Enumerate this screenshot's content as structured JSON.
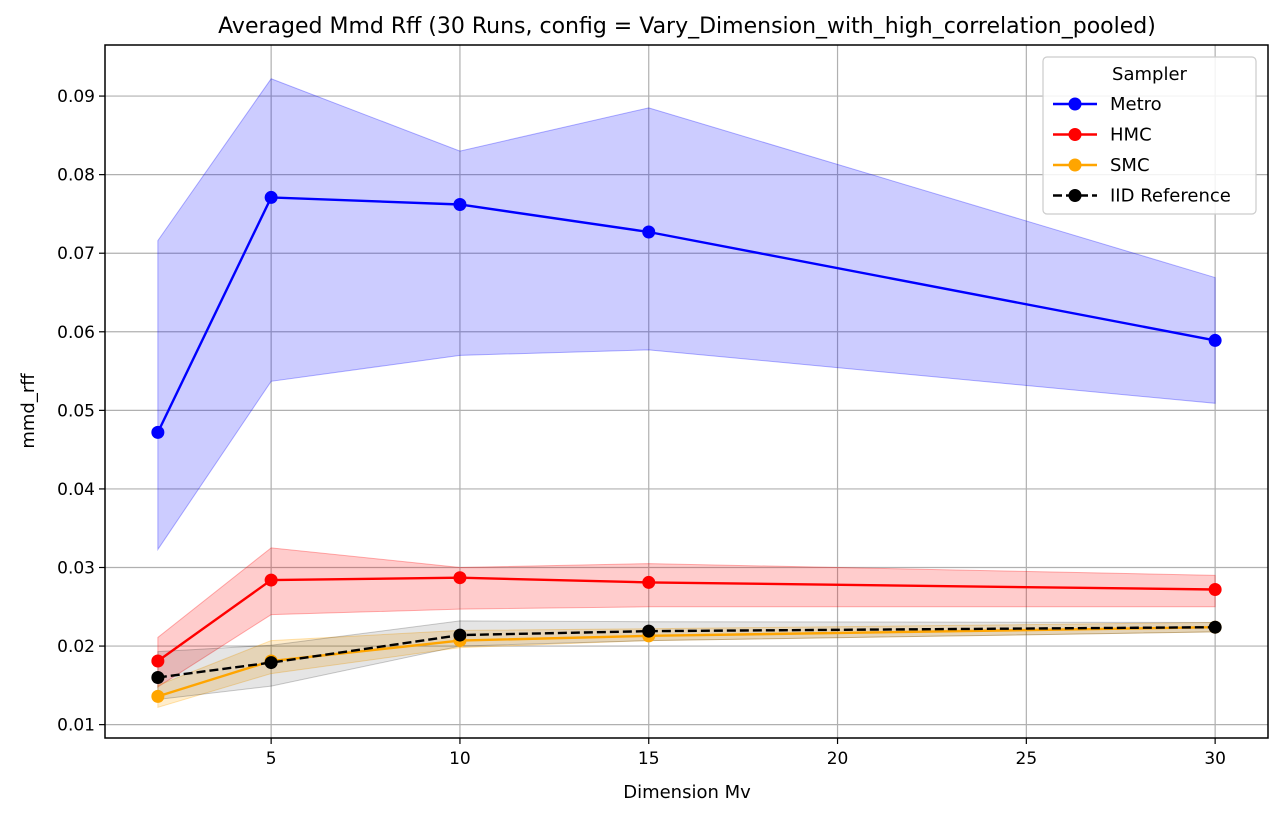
{
  "chart_data": {
    "type": "line",
    "title": "Averaged Mmd Rff (30 Runs, config = Vary_Dimension_with_high_correlation_pooled)",
    "xlabel": "Dimension Mv",
    "ylabel": "mmd_rff",
    "x": [
      2,
      5,
      10,
      15,
      30
    ],
    "xlim": [
      0.6,
      31.4
    ],
    "ylim": [
      0.0083,
      0.0965
    ],
    "xticks": [
      5,
      10,
      15,
      20,
      25,
      30
    ],
    "yticks": [
      0.01,
      0.02,
      0.03,
      0.04,
      0.05,
      0.06,
      0.07,
      0.08,
      0.09
    ],
    "ytick_labels": [
      "0.01",
      "0.02",
      "0.03",
      "0.04",
      "0.05",
      "0.06",
      "0.07",
      "0.08",
      "0.09"
    ],
    "grid": true,
    "legend": {
      "title": "Sampler",
      "placement": "top-right"
    },
    "series": [
      {
        "name": "Metro",
        "color": "#0000ff",
        "linestyle": "solid",
        "values": [
          0.0472,
          0.0771,
          0.0762,
          0.0727,
          0.0589
        ],
        "band_lower": [
          0.0323,
          0.0537,
          0.057,
          0.0577,
          0.0509
        ],
        "band_upper": [
          0.0716,
          0.0922,
          0.083,
          0.0885,
          0.0669
        ]
      },
      {
        "name": "HMC",
        "color": "#ff0000",
        "linestyle": "solid",
        "values": [
          0.0181,
          0.0284,
          0.0287,
          0.0281,
          0.0272
        ],
        "band_lower": [
          0.0148,
          0.024,
          0.0247,
          0.025,
          0.025
        ],
        "band_upper": [
          0.0211,
          0.0325,
          0.03,
          0.0305,
          0.029
        ]
      },
      {
        "name": "SMC",
        "color": "#ffa500",
        "linestyle": "solid",
        "values": [
          0.0136,
          0.0181,
          0.0207,
          0.0213,
          0.0224
        ],
        "band_lower": [
          0.0122,
          0.0165,
          0.0198,
          0.0207,
          0.0218
        ],
        "band_upper": [
          0.015,
          0.0207,
          0.022,
          0.0222,
          0.023
        ]
      },
      {
        "name": "IID Reference",
        "color": "#000000",
        "linestyle": "dashed",
        "values": [
          0.016,
          0.0179,
          0.0214,
          0.0219,
          0.0224
        ],
        "band_lower": [
          0.0132,
          0.0149,
          0.02,
          0.0207,
          0.0218
        ],
        "band_upper": [
          0.0193,
          0.0201,
          0.0232,
          0.0231,
          0.023
        ]
      }
    ]
  }
}
